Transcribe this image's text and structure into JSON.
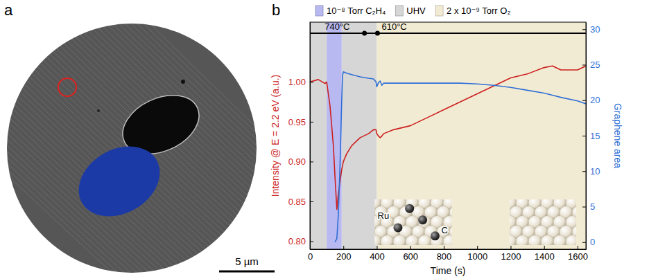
{
  "image_panel": {
    "label": "a",
    "scale_bar": "5 µm"
  },
  "chart_data": {
    "type": "line",
    "panel_label": "b",
    "xlabel": "Time (s)",
    "ylabel": "Intensity @ E = 2.2 eV (a.u.)",
    "y2label": "Graphene area",
    "x": [
      0,
      50,
      90,
      100,
      120,
      140,
      150,
      161,
      170,
      180,
      190,
      195,
      200,
      220,
      250,
      300,
      350,
      380,
      395,
      400,
      410,
      420,
      430,
      440,
      500,
      600,
      700,
      800,
      900,
      1000,
      1100,
      1200,
      1300,
      1400,
      1450,
      1500,
      1600,
      1650
    ],
    "series": [
      {
        "color": "#cc1f1f",
        "values": [
          1.0,
          1.003,
          0.998,
          1.0,
          0.97,
          0.92,
          0.88,
          0.84,
          0.86,
          0.875,
          0.89,
          0.895,
          0.9,
          0.91,
          0.92,
          0.93,
          0.935,
          0.94,
          0.94,
          0.935,
          0.932,
          0.93,
          0.932,
          0.935,
          0.94,
          0.945,
          0.955,
          0.965,
          0.975,
          0.985,
          0.995,
          1.005,
          1.01,
          1.018,
          1.02,
          1.015,
          1.015,
          1.02
        ]
      },
      {
        "color": "#2f6fd6",
        "axis": "y2",
        "values": [
          null,
          null,
          null,
          null,
          null,
          null,
          0,
          0.5,
          4,
          11,
          20,
          23.5,
          24,
          23.8,
          23.6,
          23.3,
          23.1,
          23,
          22.6,
          21.9,
          22.5,
          22.7,
          22.1,
          22.4,
          22.4,
          22.4,
          22.4,
          22.4,
          22.4,
          22.3,
          22.1,
          21.8,
          21.4,
          21,
          20.7,
          20.4,
          19.9,
          19.5
        ]
      }
    ],
    "xlim": [
      0,
      1650
    ],
    "xticks": [
      0,
      200,
      400,
      600,
      800,
      1000,
      1200,
      1400,
      1600
    ],
    "ylim": [
      0.79,
      1.075
    ],
    "yticks": [
      {
        "value": 0.8,
        "label": "0.80"
      },
      {
        "value": 0.85,
        "label": "0.85"
      },
      {
        "value": 0.9,
        "label": "0.90"
      },
      {
        "value": 0.95,
        "label": "0.95"
      },
      {
        "value": 1,
        "label": "1.00"
      }
    ],
    "y2lim": [
      -1,
      31
    ],
    "y2ticks": [
      0,
      5,
      10,
      15,
      20,
      25,
      30
    ],
    "phases": [
      {
        "name": "10⁻⁸ Torr C₂H₄",
        "color": "#b9b9f2",
        "intervals": [
          [
            100,
            190
          ]
        ]
      },
      {
        "name": "UHV",
        "color": "#d6d6d6",
        "intervals": [
          [
            0,
            100
          ],
          [
            190,
            400
          ]
        ]
      },
      {
        "name": "2 x 10⁻⁹ Torr O₂",
        "color": "#f2ebd3",
        "intervals": [
          [
            400,
            1650
          ]
        ]
      }
    ],
    "temperatures": [
      {
        "label": "740°C",
        "start": 0,
        "end": 326
      },
      {
        "label": "610°C",
        "start": 404,
        "end": 1650
      }
    ],
    "annotations": [
      "Ru",
      "C"
    ],
    "grid": false
  }
}
